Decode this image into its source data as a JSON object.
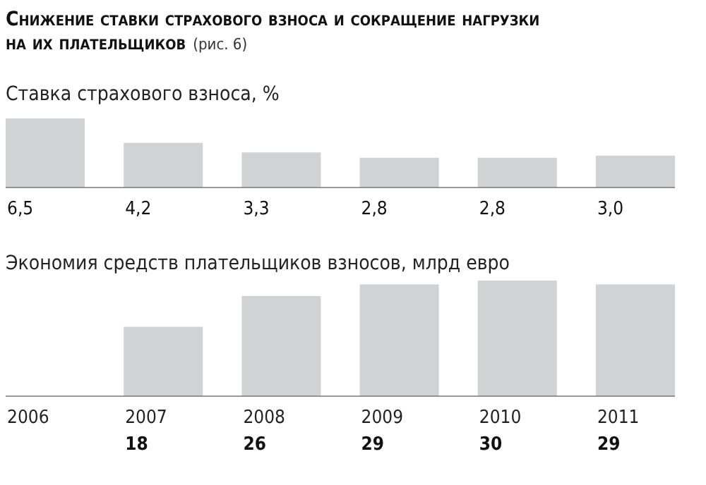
{
  "chart_data": [
    {
      "type": "bar",
      "title": "Снижение ставки страхового взноса и сокращение нагрузки на их плательщиков",
      "annotations": [
        "(рис. 6)"
      ],
      "subtitle": "Ставка страхового взноса, %",
      "categories": [
        null,
        null,
        null,
        null,
        null,
        null
      ],
      "values": [
        6.5,
        4.2,
        3.3,
        2.8,
        2.8,
        3.0
      ],
      "value_labels": [
        "6,5",
        "4,2",
        "3,3",
        "2,8",
        "2,8",
        "3,0"
      ],
      "color": "#d1d2d4"
    },
    {
      "type": "bar",
      "title": "Экономия средств плательщиков взносов, млрд евро",
      "categories": [
        "2006",
        "2007",
        "2008",
        "2009",
        "2010",
        "2011"
      ],
      "values": [
        null,
        18,
        26,
        29,
        30,
        29
      ],
      "data_labels": true,
      "color": "#d1d2d4"
    }
  ]
}
